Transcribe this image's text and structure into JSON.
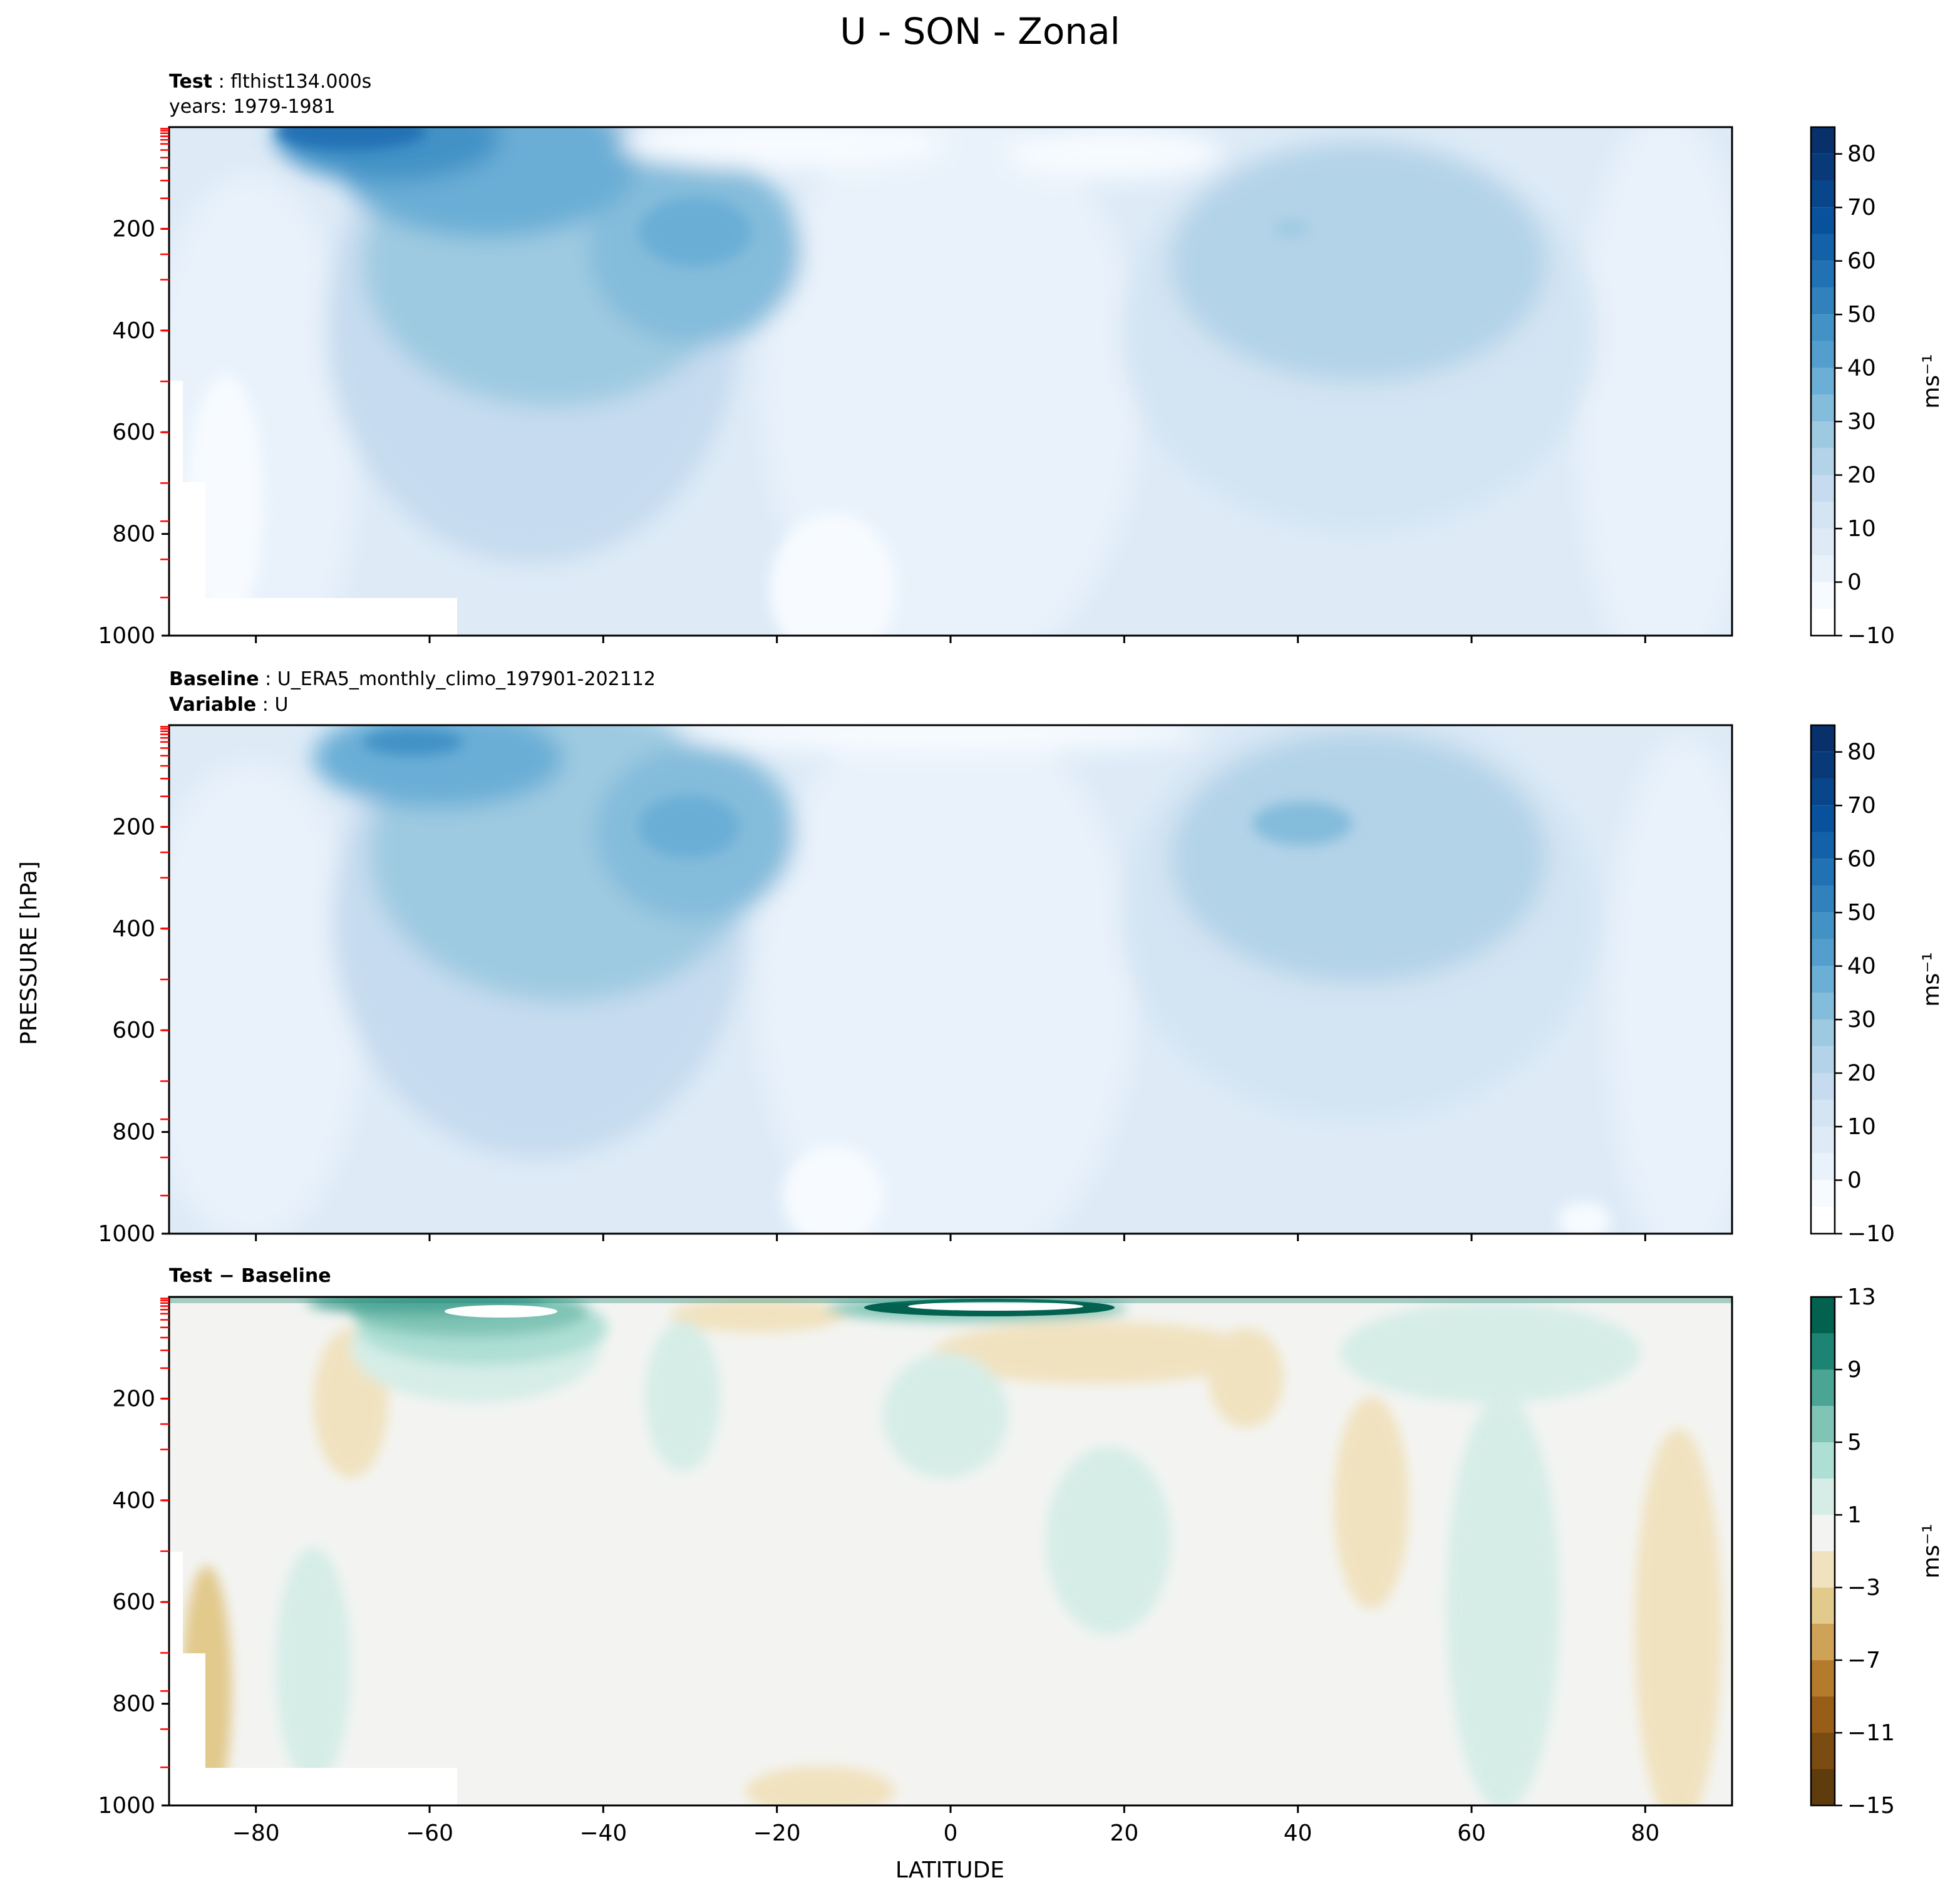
{
  "figure": {
    "title": "U - SON - Zonal",
    "ylabel": "PRESSURE [hPa]",
    "xlabel": "LATITUDE"
  },
  "chart_data": [
    {
      "type": "heatmap",
      "panel": "test",
      "caption_lines": [
        {
          "bold": "Test",
          "text": "flthist134.000s"
        },
        {
          "bold": "",
          "text": "years: 1979-1981"
        }
      ],
      "xlabel": "LATITUDE",
      "ylabel": "PRESSURE [hPa]",
      "xlim": [
        -90,
        90
      ],
      "ylim": [
        1000,
        0
      ],
      "x_ticks": [
        -80,
        -60,
        -40,
        -20,
        0,
        20,
        40,
        60,
        80
      ],
      "y_ticks": [
        200,
        400,
        600,
        800,
        1000
      ],
      "colorbar": {
        "label": "ms⁻¹",
        "ticks": [
          -10,
          0,
          10,
          20,
          30,
          40,
          50,
          60,
          70,
          80
        ],
        "levels": [
          -10,
          -5,
          0,
          5,
          10,
          15,
          20,
          25,
          30,
          35,
          40,
          45,
          50,
          55,
          60,
          65,
          70,
          75,
          80,
          85
        ],
        "colors": [
          "#ffffff",
          "#f7fbff",
          "#e9f2fb",
          "#deebf7",
          "#d3e4f3",
          "#c6dbef",
          "#b3d3e8",
          "#9ecae1",
          "#84bcdb",
          "#6baed6",
          "#549ecd",
          "#4292c6",
          "#3181bd",
          "#2171b5",
          "#1361a9",
          "#08519c",
          "#08458a",
          "#083a7a",
          "#08306b"
        ]
      },
      "jets": [
        {
          "lat": -58,
          "p": 25,
          "u": 70
        },
        {
          "lat": -30,
          "p": 200,
          "u": 42
        },
        {
          "lat": 38,
          "p": 200,
          "u": 33
        }
      ],
      "easterlies": [
        {
          "lat": -12,
          "p": 30,
          "u": -6
        },
        {
          "lat": 10,
          "p": 60,
          "u": -4
        },
        {
          "lat": -7,
          "p": 900,
          "u": -3
        }
      ]
    },
    {
      "type": "heatmap",
      "panel": "baseline",
      "caption_lines": [
        {
          "bold": "Baseline",
          "text": "U_ERA5_monthly_climo_197901-202112"
        },
        {
          "bold": "Variable",
          "text": "U"
        }
      ],
      "xlabel": "LATITUDE",
      "ylabel": "PRESSURE [hPa]",
      "xlim": [
        -90,
        90
      ],
      "ylim": [
        1000,
        0
      ],
      "x_ticks": [
        -80,
        -60,
        -40,
        -20,
        0,
        20,
        40,
        60,
        80
      ],
      "y_ticks": [
        200,
        400,
        600,
        800,
        1000
      ],
      "colorbar": {
        "label": "ms⁻¹",
        "ticks": [
          -10,
          0,
          10,
          20,
          30,
          40,
          50,
          60,
          70,
          80
        ],
        "levels": [
          -10,
          -5,
          0,
          5,
          10,
          15,
          20,
          25,
          30,
          35,
          40,
          45,
          50,
          55,
          60,
          65,
          70,
          75,
          80,
          85
        ],
        "colors": [
          "#ffffff",
          "#f7fbff",
          "#e9f2fb",
          "#deebf7",
          "#d3e4f3",
          "#c6dbef",
          "#b3d3e8",
          "#9ecae1",
          "#84bcdb",
          "#6baed6",
          "#549ecd",
          "#4292c6",
          "#3181bd",
          "#2171b5",
          "#1361a9",
          "#08519c",
          "#08458a",
          "#083a7a",
          "#08306b"
        ]
      },
      "jets": [
        {
          "lat": -58,
          "p": 25,
          "u": 45
        },
        {
          "lat": -29,
          "p": 200,
          "u": 40
        },
        {
          "lat": 40,
          "p": 200,
          "u": 37
        }
      ],
      "easterlies": [
        {
          "lat": 5,
          "p": 20,
          "u": -8
        },
        {
          "lat": -14,
          "p": 900,
          "u": -3
        }
      ]
    },
    {
      "type": "heatmap",
      "panel": "difference",
      "caption_lines": [
        {
          "bold": "Test − Baseline",
          "text": ""
        }
      ],
      "xlabel": "LATITUDE",
      "ylabel": "PRESSURE [hPa]",
      "xlim": [
        -90,
        90
      ],
      "ylim": [
        1000,
        0
      ],
      "x_ticks": [
        -80,
        -60,
        -40,
        -20,
        0,
        20,
        40,
        60,
        80
      ],
      "y_ticks": [
        200,
        400,
        600,
        800,
        1000
      ],
      "colorbar": {
        "label": "ms⁻¹",
        "ticks": [
          -15,
          -11,
          -7,
          -3,
          1,
          5,
          9,
          13
        ],
        "levels": [
          -15,
          -13,
          -11,
          -9,
          -7,
          -5,
          -3,
          -1,
          1,
          3,
          5,
          7,
          9,
          11,
          13
        ],
        "colors": [
          "#5e3c0b",
          "#7a4c11",
          "#985e17",
          "#b57b2c",
          "#cfa357",
          "#e2c98c",
          "#f1e2bf",
          "#f3f4f2",
          "#d6ede7",
          "#aedfd4",
          "#7fc4b5",
          "#4ba595",
          "#1d8473",
          "#03614f"
        ]
      },
      "features": [
        {
          "lat": -45,
          "p": 40,
          "du": 8
        },
        {
          "lat": 10,
          "p": 15,
          "du": 13
        },
        {
          "lat": -20,
          "p": 60,
          "du": -2
        },
        {
          "lat": 55,
          "p": 300,
          "du": 2
        },
        {
          "lat": -80,
          "p": 800,
          "du": -5
        }
      ]
    }
  ],
  "colors": {
    "axes": "#000000",
    "red_ticks": "#ff0000",
    "background": "#ffffff"
  }
}
